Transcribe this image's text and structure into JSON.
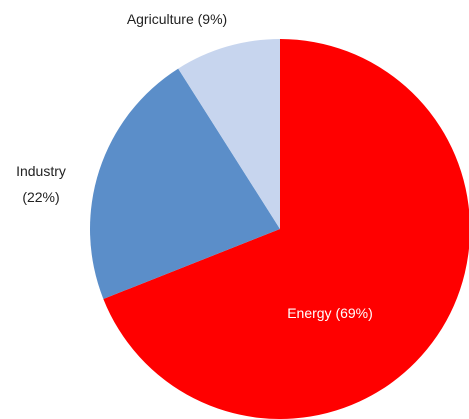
{
  "chart_data": {
    "type": "pie",
    "title": "",
    "slices": [
      {
        "label": "Energy (69%)",
        "value": 69,
        "color": "#ff0000",
        "label_color": "#ffffff"
      },
      {
        "label": "Industry (22%)",
        "value": 22,
        "color": "#5b8ec9",
        "label_color": "#222222",
        "label_lines": [
          "Industry",
          "(22%)"
        ]
      },
      {
        "label": "Agriculture (9%)",
        "value": 9,
        "color": "#c7d5ee",
        "label_color": "#222222"
      }
    ],
    "start_angle": "top",
    "direction": "clockwise"
  }
}
